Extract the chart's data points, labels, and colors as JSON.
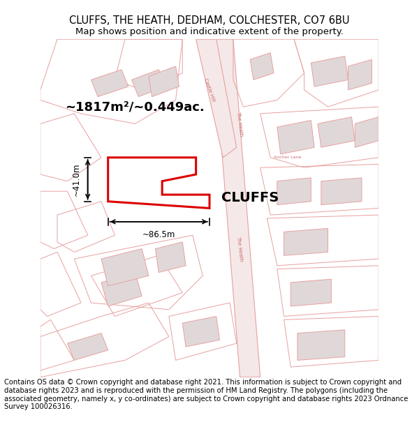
{
  "title_line1": "CLUFFS, THE HEATH, DEDHAM, COLCHESTER, CO7 6BU",
  "title_line2": "Map shows position and indicative extent of the property.",
  "footer_text": "Contains OS data © Crown copyright and database right 2021. This information is subject to Crown copyright and database rights 2023 and is reproduced with the permission of HM Land Registry. The polygons (including the associated geometry, namely x, y co-ordinates) are subject to Crown copyright and database rights 2023 Ordnance Survey 100026316.",
  "area_text": "~1817m²/~0.449ac.",
  "property_label": "CLUFFS",
  "dim1_label": "~41.0m",
  "dim2_label": "~86.5m",
  "map_bg": "#faf7f7",
  "road_fill": "#f5e8e8",
  "plot_outline_color": "#dd0000",
  "road_outline": "#e8a0a0",
  "building_fill": "#e0d8d8",
  "building_outline": "#e8a0a0",
  "road_label_color": "#cc6666",
  "title_fontsize": 10.5,
  "subtitle_fontsize": 9.5,
  "footer_fontsize": 7.2
}
